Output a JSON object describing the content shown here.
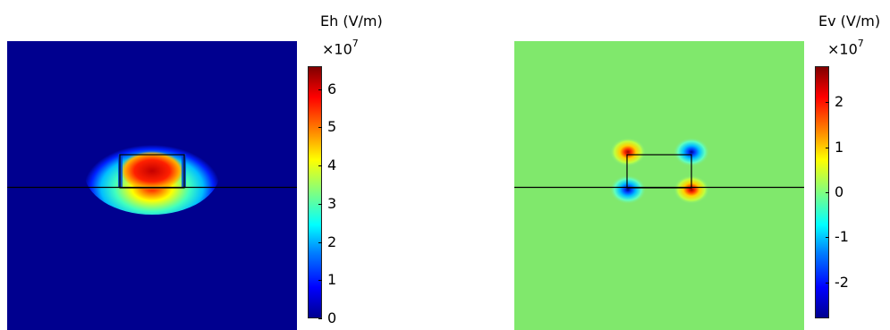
{
  "chart_data": [
    {
      "type": "heatmap",
      "title": "Eh (V/m)",
      "colorbar_multiplier": "×10",
      "colorbar_exponent": "7",
      "colorbar_range": [
        0,
        6.6
      ],
      "colorbar_ticks": [
        "0",
        "1",
        "2",
        "3",
        "4",
        "5",
        "6"
      ],
      "colorbar_tick_values": [
        0,
        1,
        2,
        3,
        4,
        5,
        6
      ],
      "colormap": "jet",
      "description_of_field": "single strong maximum centered in the rectangular core, near zero elsewhere"
    },
    {
      "type": "heatmap",
      "title": "Ev (V/m)",
      "colorbar_multiplier": "×10",
      "colorbar_exponent": "7",
      "colorbar_range": [
        -2.8,
        2.8
      ],
      "colorbar_ticks": [
        "-2",
        "-1",
        "0",
        "1",
        "2"
      ],
      "colorbar_tick_values": [
        -2,
        -1,
        0,
        1,
        2
      ],
      "colormap": "jet",
      "description_of_field": "four hot spots at the rectangle corners: positive top-left and bottom-right, negative top-right and bottom-left; near zero elsewhere"
    }
  ],
  "colors": {
    "jet_dark_blue": "#00008f",
    "jet_blue": "#0000ff",
    "jet_cyan": "#00ffff",
    "jet_green": "#7fff7f",
    "jet_yellow": "#ffff00",
    "jet_red": "#ff0000",
    "jet_dark_red": "#800000",
    "outline": "#000000"
  }
}
